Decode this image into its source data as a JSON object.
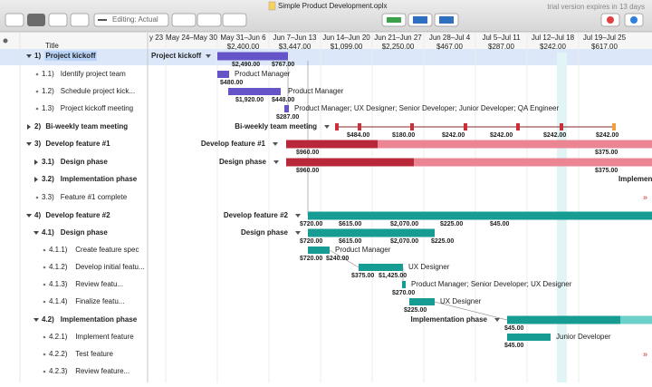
{
  "window": {
    "title": "Simple Product Development.oplx",
    "trial_notice": "trial version expires in 13 days",
    "editing_mode": "Editing: Actual"
  },
  "outline": {
    "header": "Title",
    "rows": [
      {
        "number": "1)",
        "title": "Project kickoff",
        "group": true
      },
      {
        "number": "1.1)",
        "title": "Identify project team"
      },
      {
        "number": "1.2)",
        "title": "Schedule project kick..."
      },
      {
        "number": "1.3)",
        "title": "Project kickoff meeting"
      },
      {
        "number": "2)",
        "title": "Bi-weekly team meeting",
        "group": true,
        "collapsed": true
      },
      {
        "number": "3)",
        "title": "Develop feature #1",
        "group": true
      },
      {
        "number": "3.1)",
        "title": "Design phase",
        "group": true,
        "collapsed": true
      },
      {
        "number": "3.2)",
        "title": "Implementation phase",
        "group": true,
        "collapsed": true
      },
      {
        "number": "3.3)",
        "title": "Feature #1 complete"
      },
      {
        "number": "4)",
        "title": "Develop feature #2",
        "group": true
      },
      {
        "number": "4.1)",
        "title": "Design phase",
        "group": true
      },
      {
        "number": "4.1.1)",
        "title": "Create feature spec"
      },
      {
        "number": "4.1.2)",
        "title": "Develop initial featu..."
      },
      {
        "number": "4.1.3)",
        "title": "Review featu..."
      },
      {
        "number": "4.1.4)",
        "title": "Finalize featu..."
      },
      {
        "number": "4.2)",
        "title": "Implementation phase",
        "group": true
      },
      {
        "number": "4.2.1)",
        "title": "Implement feature"
      },
      {
        "number": "4.2.2)",
        "title": "Test feature"
      },
      {
        "number": "4.2.3)",
        "title": "Review feature..."
      }
    ]
  },
  "timeline": {
    "weeks": [
      "y 23",
      "May 24–May 30",
      "May 31–Jun 6",
      "Jun 7–Jun 13",
      "Jun 14–Jun 20",
      "Jun 21–Jun 27",
      "Jun 28–Jul 4",
      "Jul 5–Jul 11",
      "Jul 12–Jul 18",
      "Jul 19–Jul 25"
    ],
    "week_costs": [
      "$2,400.00",
      "$3,447.00",
      "$1,099.00",
      "$2,250.00",
      "$467.00",
      "$287.00",
      "$242.00",
      "$617.00"
    ]
  },
  "gantt": {
    "rows": [
      {
        "caption": "Project kickoff",
        "costs": [
          "$2,490.00",
          "$767.00"
        ]
      },
      {
        "resources": "Product Manager",
        "costs": [
          "$480.00"
        ]
      },
      {
        "resources": "Product Manager",
        "costs": [
          "$1,920.00",
          "$448.00"
        ]
      },
      {
        "resources": "Product Manager; UX Designer; Senior Developer; Junior Developer; QA Engineer",
        "costs": [
          "$287.00"
        ]
      },
      {
        "caption": "Bi-weekly team meeting",
        "costs": [
          "$484.00",
          "$180.00",
          "$242.00",
          "$242.00",
          "$242.00",
          "$242.00"
        ]
      },
      {
        "caption": "Develop feature #1",
        "costs": [
          "$960.00",
          "$375.00"
        ]
      },
      {
        "caption": "Design phase",
        "costs": [
          "$960.00",
          "$375.00"
        ]
      },
      {
        "caption": "Implementation phase"
      },
      {
        "caption": "Develop feature #2",
        "costs": [
          "$720.00",
          "$615.00",
          "$2,070.00",
          "$225.00",
          "$45.00"
        ]
      },
      {
        "caption": "Design phase",
        "costs": [
          "$720.00",
          "$615.00",
          "$2,070.00",
          "$225.00"
        ]
      },
      {
        "resources": "Product Manager",
        "costs": [
          "$720.00",
          "$240.00"
        ]
      },
      {
        "resources": "UX Designer",
        "costs": [
          "$375.00",
          "$1,425.00"
        ]
      },
      {
        "resources": "Product Manager; Senior Developer; UX Designer",
        "costs": [
          "$270.00"
        ]
      },
      {
        "resources": "UX Designer",
        "costs": [
          "$225.00"
        ]
      },
      {
        "caption": "Implementation phase",
        "costs": [
          "$45.00"
        ]
      },
      {
        "resources": "Junior Developer",
        "costs": [
          "$45.00"
        ]
      }
    ]
  }
}
